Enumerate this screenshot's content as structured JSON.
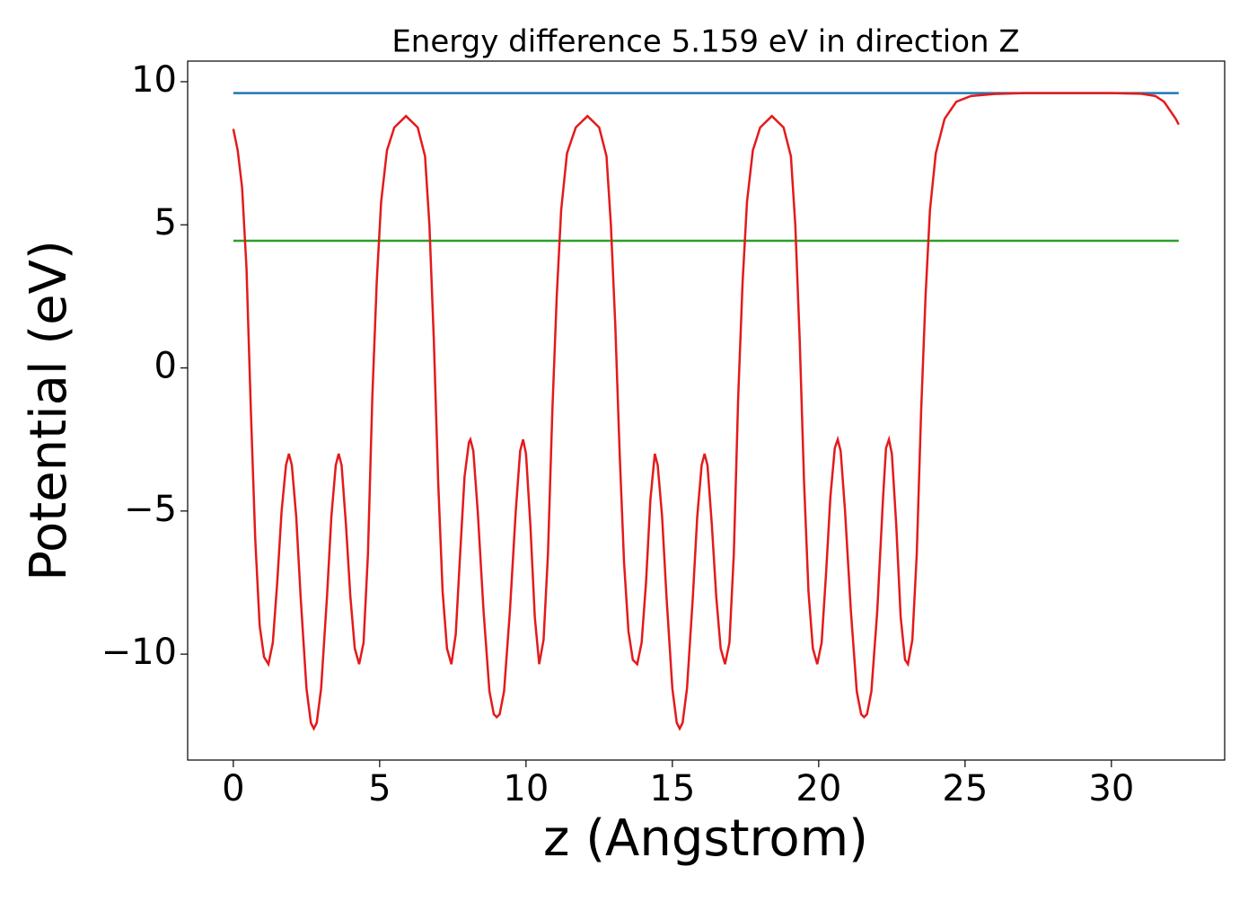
{
  "chart_data": {
    "type": "line",
    "title": "Energy difference 5.159 eV in direction Z",
    "x_label": "z (Angstrom)",
    "y_label": "Potential (eV)",
    "xlim": [
      -1.56,
      33.87
    ],
    "ylim": [
      -13.7,
      10.72
    ],
    "xticks": [
      0,
      5,
      10,
      15,
      20,
      25,
      30
    ],
    "yticks": [
      {
        "value": -10,
        "label": "−10"
      },
      {
        "value": -5,
        "label": "−5"
      },
      0,
      5,
      10
    ],
    "series": [
      {
        "color": "#1f77b4",
        "x": [
          0,
          32.3
        ],
        "values": [
          9.6,
          9.6
        ]
      },
      {
        "color": "#2ca02c",
        "x": [
          0,
          32.3
        ],
        "values": [
          4.441,
          4.441
        ]
      },
      {
        "color": "#e41a1c",
        "x": [
          0,
          0.15,
          0.3,
          0.45,
          0.6,
          0.75,
          0.9,
          1.05,
          1.2,
          1.35,
          1.5,
          1.65,
          1.8,
          1.9,
          2.0,
          2.15,
          2.3,
          2.5,
          2.65,
          2.75,
          2.85,
          3.0,
          3.2,
          3.35,
          3.5,
          3.6,
          3.7,
          3.85,
          4.0,
          4.15,
          4.3,
          4.45,
          4.6,
          4.75,
          4.9,
          5.05,
          5.25,
          5.5,
          5.9,
          6.3,
          6.55,
          6.7,
          6.85,
          7.0,
          7.15,
          7.3,
          7.45,
          7.6,
          7.75,
          7.9,
          8.05,
          8.1,
          8.2,
          8.35,
          8.55,
          8.75,
          8.9,
          9.0,
          9.1,
          9.25,
          9.45,
          9.65,
          9.8,
          9.9,
          10.0,
          10.15,
          10.3,
          10.45,
          10.6,
          10.75,
          10.9,
          11.05,
          11.2,
          11.4,
          11.7,
          12.1,
          12.5,
          12.75,
          12.9,
          13.05,
          13.2,
          13.35,
          13.5,
          13.65,
          13.8,
          13.95,
          14.1,
          14.25,
          14.4,
          14.5,
          14.65,
          14.8,
          15.0,
          15.15,
          15.25,
          15.35,
          15.5,
          15.7,
          15.85,
          16.0,
          16.1,
          16.2,
          16.35,
          16.5,
          16.65,
          16.8,
          16.95,
          17.1,
          17.25,
          17.4,
          17.55,
          17.75,
          18.0,
          18.4,
          18.8,
          19.05,
          19.2,
          19.35,
          19.5,
          19.65,
          19.8,
          19.95,
          20.1,
          20.25,
          20.4,
          20.55,
          20.65,
          20.75,
          20.9,
          21.1,
          21.3,
          21.45,
          21.55,
          21.65,
          21.8,
          22.0,
          22.2,
          22.3,
          22.4,
          22.5,
          22.65,
          22.8,
          22.95,
          23.05,
          23.2,
          23.35,
          23.5,
          23.65,
          23.8,
          24.0,
          24.3,
          24.7,
          25.2,
          26,
          27,
          28,
          29,
          30,
          31,
          31.5,
          31.8,
          32.0,
          32.2,
          32.3
        ],
        "values": [
          8.35,
          7.6,
          6.3,
          3.5,
          -1.5,
          -6,
          -9,
          -10.1,
          -10.35,
          -9.6,
          -7.5,
          -5,
          -3.4,
          -3.0,
          -3.4,
          -5.2,
          -8,
          -11.2,
          -12.4,
          -12.6,
          -12.4,
          -11.2,
          -8,
          -5.2,
          -3.4,
          -3.0,
          -3.4,
          -5.5,
          -8,
          -9.8,
          -10.35,
          -9.6,
          -6.5,
          -1,
          3,
          5.8,
          7.6,
          8.4,
          8.8,
          8.4,
          7.4,
          5.0,
          1,
          -4,
          -7.8,
          -9.8,
          -10.35,
          -9.3,
          -6.5,
          -3.8,
          -2.6,
          -2.5,
          -2.9,
          -5,
          -8.5,
          -11.3,
          -12.1,
          -12.2,
          -12.1,
          -11.3,
          -8.5,
          -5,
          -2.9,
          -2.5,
          -3.0,
          -5.5,
          -8.7,
          -10.35,
          -9.5,
          -6.5,
          -1.5,
          2.5,
          5.5,
          7.5,
          8.4,
          8.8,
          8.4,
          7.4,
          5.0,
          1.5,
          -3,
          -6.8,
          -9.2,
          -10.2,
          -10.35,
          -9.6,
          -7.5,
          -4.6,
          -3.0,
          -3.4,
          -5.2,
          -8,
          -11.2,
          -12.4,
          -12.6,
          -12.4,
          -11.2,
          -8,
          -5.2,
          -3.4,
          -3.0,
          -3.4,
          -5.5,
          -8,
          -9.8,
          -10.35,
          -9.6,
          -6.5,
          -1,
          3,
          5.8,
          7.6,
          8.4,
          8.8,
          8.4,
          7.4,
          5.0,
          1,
          -4,
          -7.8,
          -9.8,
          -10.35,
          -9.6,
          -7.2,
          -4.5,
          -2.8,
          -2.5,
          -2.9,
          -5,
          -8.5,
          -11.3,
          -12.1,
          -12.2,
          -12.1,
          -11.3,
          -8.5,
          -4.5,
          -2.8,
          -2.5,
          -3.0,
          -5.5,
          -8.7,
          -10.2,
          -10.35,
          -9.5,
          -6.5,
          -1.5,
          2.5,
          5.5,
          7.5,
          8.7,
          9.3,
          9.5,
          9.57,
          9.6,
          9.6,
          9.6,
          9.6,
          9.58,
          9.5,
          9.3,
          9.0,
          8.7,
          8.5
        ]
      }
    ]
  }
}
